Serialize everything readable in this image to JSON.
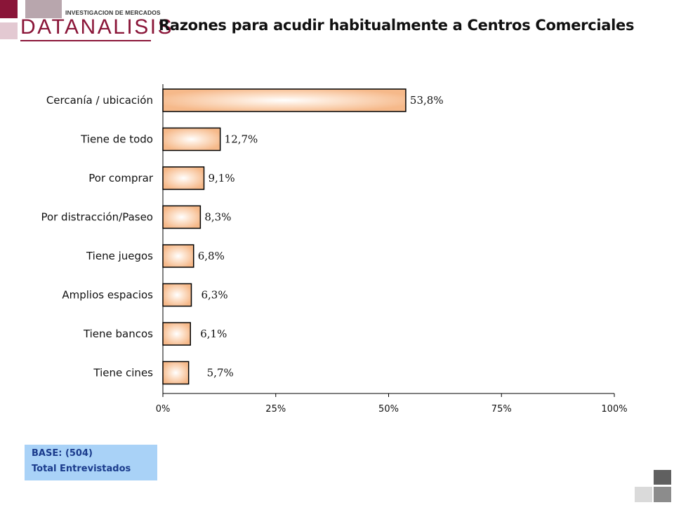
{
  "logo": {
    "top_text": "INVESTIGACION DE MERCADOS",
    "brand": "DATANALISIS",
    "brand_color": "#8a1538"
  },
  "page_title": "Razones para acudir habitualmente a Centros Comerciales",
  "base_note": {
    "line1": "BASE:  (504)",
    "line2": "Total Entrevistados",
    "background": "#a9d2f7",
    "text_color": "#1a3b8c"
  },
  "chart_data": {
    "type": "bar",
    "orientation": "horizontal",
    "categories": [
      "Cercanía / ubicación",
      "Tiene de todo",
      "Por comprar",
      "Por distracción/Paseo",
      "Tiene juegos",
      "Amplios espacios",
      "Tiene bancos",
      "Tiene cines"
    ],
    "values": [
      53.8,
      12.7,
      9.1,
      8.3,
      6.8,
      6.3,
      6.1,
      5.7
    ],
    "value_labels": [
      "53,8%",
      "12,7%",
      "9,1%",
      "8,3%",
      "6,8%",
      "6,3%",
      "6,1%",
      "5,7%"
    ],
    "xlim": [
      0,
      100
    ],
    "ticks": [
      0,
      25,
      50,
      75,
      100
    ],
    "tick_labels": [
      "0%",
      "25%",
      "50%",
      "75%",
      "100%"
    ],
    "grid": false,
    "legend": "none",
    "bar_color": "#f6b98a",
    "bar_highlight": "#ffffff"
  }
}
